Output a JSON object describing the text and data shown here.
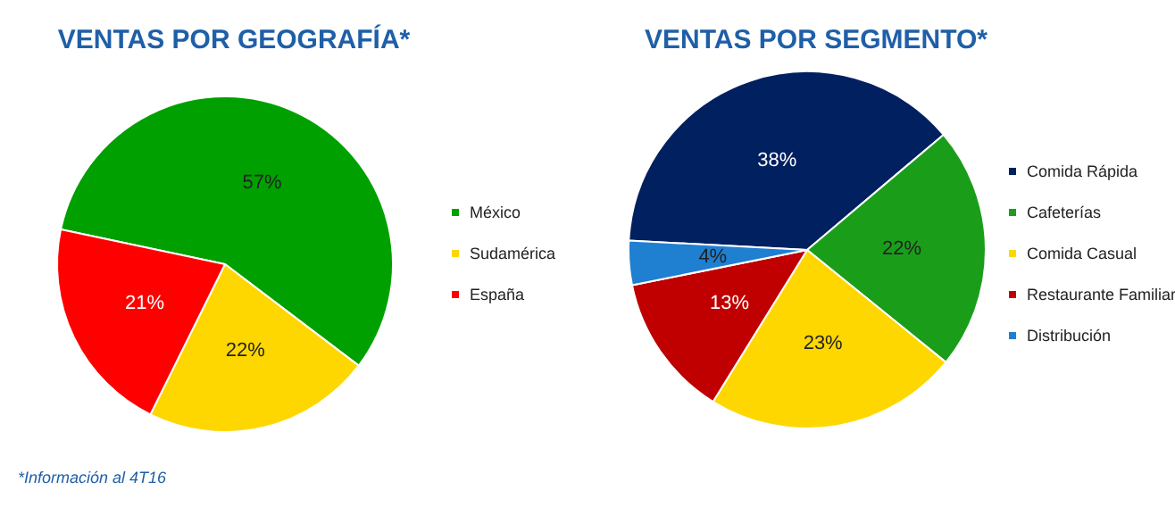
{
  "chart_data": [
    {
      "type": "pie",
      "title": "VENTAS POR GEOGRAFÍA*",
      "categories": [
        "México",
        "Sudamérica",
        "España"
      ],
      "values": [
        57,
        22,
        21
      ],
      "value_labels": [
        "57%",
        "22%",
        "21%"
      ],
      "colors": [
        "#00a000",
        "#ffd700",
        "#ff0000"
      ],
      "legend": "right",
      "annotations": [
        "*Información al 4T16"
      ]
    },
    {
      "type": "pie",
      "title": "VENTAS POR SEGMENTO*",
      "categories": [
        "Comida Rápida",
        "Cafeterías",
        "Comida Casual",
        "Restaurante Familiar",
        "Distribución"
      ],
      "values": [
        38,
        22,
        23,
        13,
        4
      ],
      "value_labels": [
        "38%",
        "22%",
        "23%",
        "13%",
        "4%"
      ],
      "colors": [
        "#002060",
        "#1a9e1a",
        "#ffd700",
        "#c00000",
        "#1f7fd1"
      ],
      "legend": "right"
    }
  ]
}
